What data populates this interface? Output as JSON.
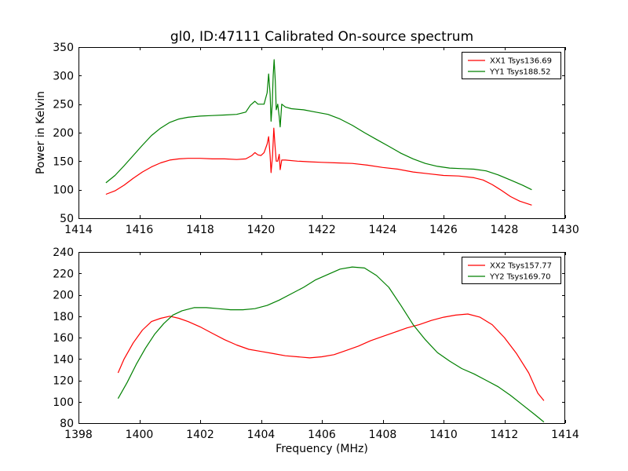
{
  "chart_data": [
    {
      "type": "line",
      "title": "gl0, ID:47111 Calibrated On-source spectrum",
      "xlabel": "",
      "ylabel": "Power in Kelvin",
      "xlim": [
        1414,
        1430
      ],
      "ylim": [
        50,
        350
      ],
      "xticks": [
        1414,
        1416,
        1418,
        1420,
        1422,
        1424,
        1426,
        1428,
        1430
      ],
      "yticks": [
        50,
        100,
        150,
        200,
        250,
        300,
        350
      ],
      "grid": false,
      "legend": "top-right",
      "series": [
        {
          "name": "XX1 Tsys136.69",
          "color": "#ff0000",
          "points": [
            [
              1414.9,
              92
            ],
            [
              1415.2,
              98
            ],
            [
              1415.5,
              108
            ],
            [
              1415.8,
              120
            ],
            [
              1416.1,
              131
            ],
            [
              1416.4,
              140
            ],
            [
              1416.7,
              147
            ],
            [
              1417.0,
              152
            ],
            [
              1417.3,
              154
            ],
            [
              1417.6,
              155
            ],
            [
              1418.0,
              155
            ],
            [
              1418.4,
              154
            ],
            [
              1418.8,
              154
            ],
            [
              1419.2,
              153
            ],
            [
              1419.5,
              154
            ],
            [
              1419.7,
              160
            ],
            [
              1419.8,
              165
            ],
            [
              1419.9,
              161
            ],
            [
              1420.0,
              160
            ],
            [
              1420.1,
              165
            ],
            [
              1420.2,
              180
            ],
            [
              1420.25,
              193
            ],
            [
              1420.3,
              160
            ],
            [
              1420.33,
              130
            ],
            [
              1420.38,
              160
            ],
            [
              1420.42,
              208
            ],
            [
              1420.46,
              178
            ],
            [
              1420.5,
              150
            ],
            [
              1420.55,
              150
            ],
            [
              1420.6,
              162
            ],
            [
              1420.63,
              135
            ],
            [
              1420.68,
              152
            ],
            [
              1420.8,
              152
            ],
            [
              1421.2,
              150
            ],
            [
              1421.6,
              149
            ],
            [
              1422.0,
              148
            ],
            [
              1422.5,
              147
            ],
            [
              1423.0,
              146
            ],
            [
              1423.5,
              143
            ],
            [
              1424.0,
              139
            ],
            [
              1424.5,
              136
            ],
            [
              1425.0,
              131
            ],
            [
              1425.5,
              128
            ],
            [
              1426.0,
              125
            ],
            [
              1426.5,
              124
            ],
            [
              1427.0,
              121
            ],
            [
              1427.3,
              117
            ],
            [
              1427.6,
              109
            ],
            [
              1427.9,
              99
            ],
            [
              1428.2,
              88
            ],
            [
              1428.5,
              80
            ],
            [
              1428.9,
              73
            ]
          ]
        },
        {
          "name": "YY1 Tsys188.52",
          "color": "#008000",
          "points": [
            [
              1414.9,
              112
            ],
            [
              1415.2,
              125
            ],
            [
              1415.5,
              142
            ],
            [
              1415.8,
              160
            ],
            [
              1416.1,
              178
            ],
            [
              1416.4,
              195
            ],
            [
              1416.7,
              208
            ],
            [
              1417.0,
              218
            ],
            [
              1417.3,
              224
            ],
            [
              1417.6,
              227
            ],
            [
              1418.0,
              229
            ],
            [
              1418.4,
              230
            ],
            [
              1418.8,
              231
            ],
            [
              1419.2,
              232
            ],
            [
              1419.5,
              236
            ],
            [
              1419.65,
              248
            ],
            [
              1419.8,
              255
            ],
            [
              1419.9,
              250
            ],
            [
              1420.1,
              250
            ],
            [
              1420.2,
              270
            ],
            [
              1420.25,
              303
            ],
            [
              1420.3,
              268
            ],
            [
              1420.33,
              220
            ],
            [
              1420.37,
              250
            ],
            [
              1420.4,
              300
            ],
            [
              1420.43,
              328
            ],
            [
              1420.47,
              290
            ],
            [
              1420.5,
              240
            ],
            [
              1420.55,
              250
            ],
            [
              1420.6,
              228
            ],
            [
              1420.63,
              210
            ],
            [
              1420.68,
              250
            ],
            [
              1420.8,
              245
            ],
            [
              1421.0,
              242
            ],
            [
              1421.4,
              240
            ],
            [
              1421.8,
              236
            ],
            [
              1422.2,
              232
            ],
            [
              1422.6,
              224
            ],
            [
              1423.0,
              213
            ],
            [
              1423.4,
              200
            ],
            [
              1423.8,
              188
            ],
            [
              1424.2,
              176
            ],
            [
              1424.6,
              164
            ],
            [
              1425.0,
              154
            ],
            [
              1425.4,
              146
            ],
            [
              1425.8,
              141
            ],
            [
              1426.2,
              138
            ],
            [
              1426.6,
              137
            ],
            [
              1427.0,
              136
            ],
            [
              1427.4,
              133
            ],
            [
              1427.8,
              126
            ],
            [
              1428.2,
              117
            ],
            [
              1428.6,
              108
            ],
            [
              1428.9,
              100
            ]
          ]
        }
      ]
    },
    {
      "type": "line",
      "title": "",
      "xlabel": "Frequency (MHz)",
      "ylabel": "",
      "xlim": [
        1398,
        1414
      ],
      "ylim": [
        80,
        240
      ],
      "xticks": [
        1398,
        1400,
        1402,
        1404,
        1406,
        1408,
        1410,
        1412,
        1414
      ],
      "yticks": [
        80,
        100,
        120,
        140,
        160,
        180,
        200,
        220,
        240
      ],
      "grid": false,
      "legend": "top-right",
      "series": [
        {
          "name": "XX2 Tsys157.77",
          "color": "#ff0000",
          "points": [
            [
              1399.3,
              127
            ],
            [
              1399.5,
              140
            ],
            [
              1399.8,
              155
            ],
            [
              1400.1,
              167
            ],
            [
              1400.4,
              175
            ],
            [
              1400.7,
              178
            ],
            [
              1401.0,
              180
            ],
            [
              1401.3,
              178
            ],
            [
              1401.6,
              175
            ],
            [
              1402.0,
              170
            ],
            [
              1402.4,
              164
            ],
            [
              1402.8,
              158
            ],
            [
              1403.2,
              153
            ],
            [
              1403.6,
              149
            ],
            [
              1404.0,
              147
            ],
            [
              1404.4,
              145
            ],
            [
              1404.8,
              143
            ],
            [
              1405.2,
              142
            ],
            [
              1405.6,
              141
            ],
            [
              1406.0,
              142
            ],
            [
              1406.4,
              144
            ],
            [
              1406.8,
              148
            ],
            [
              1407.2,
              152
            ],
            [
              1407.6,
              157
            ],
            [
              1408.0,
              161
            ],
            [
              1408.4,
              165
            ],
            [
              1408.8,
              169
            ],
            [
              1409.2,
              172
            ],
            [
              1409.6,
              176
            ],
            [
              1410.0,
              179
            ],
            [
              1410.4,
              181
            ],
            [
              1410.8,
              182
            ],
            [
              1411.2,
              179
            ],
            [
              1411.6,
              172
            ],
            [
              1412.0,
              160
            ],
            [
              1412.4,
              145
            ],
            [
              1412.8,
              127
            ],
            [
              1413.1,
              108
            ],
            [
              1413.3,
              101
            ]
          ]
        },
        {
          "name": "YY2 Tsys169.70",
          "color": "#008000",
          "points": [
            [
              1399.3,
              103
            ],
            [
              1399.6,
              118
            ],
            [
              1399.9,
              135
            ],
            [
              1400.2,
              150
            ],
            [
              1400.5,
              163
            ],
            [
              1400.8,
              173
            ],
            [
              1401.1,
              181
            ],
            [
              1401.4,
              185
            ],
            [
              1401.8,
              188
            ],
            [
              1402.2,
              188
            ],
            [
              1402.6,
              187
            ],
            [
              1403.0,
              186
            ],
            [
              1403.4,
              186
            ],
            [
              1403.8,
              187
            ],
            [
              1404.2,
              190
            ],
            [
              1404.6,
              195
            ],
            [
              1405.0,
              201
            ],
            [
              1405.4,
              207
            ],
            [
              1405.8,
              214
            ],
            [
              1406.2,
              219
            ],
            [
              1406.6,
              224
            ],
            [
              1407.0,
              226
            ],
            [
              1407.4,
              225
            ],
            [
              1407.8,
              218
            ],
            [
              1408.2,
              207
            ],
            [
              1408.6,
              190
            ],
            [
              1409.0,
              172
            ],
            [
              1409.4,
              158
            ],
            [
              1409.8,
              146
            ],
            [
              1410.2,
              138
            ],
            [
              1410.6,
              131
            ],
            [
              1411.0,
              126
            ],
            [
              1411.4,
              120
            ],
            [
              1411.8,
              114
            ],
            [
              1412.2,
              106
            ],
            [
              1412.6,
              97
            ],
            [
              1413.0,
              88
            ],
            [
              1413.3,
              81
            ]
          ]
        }
      ]
    }
  ]
}
